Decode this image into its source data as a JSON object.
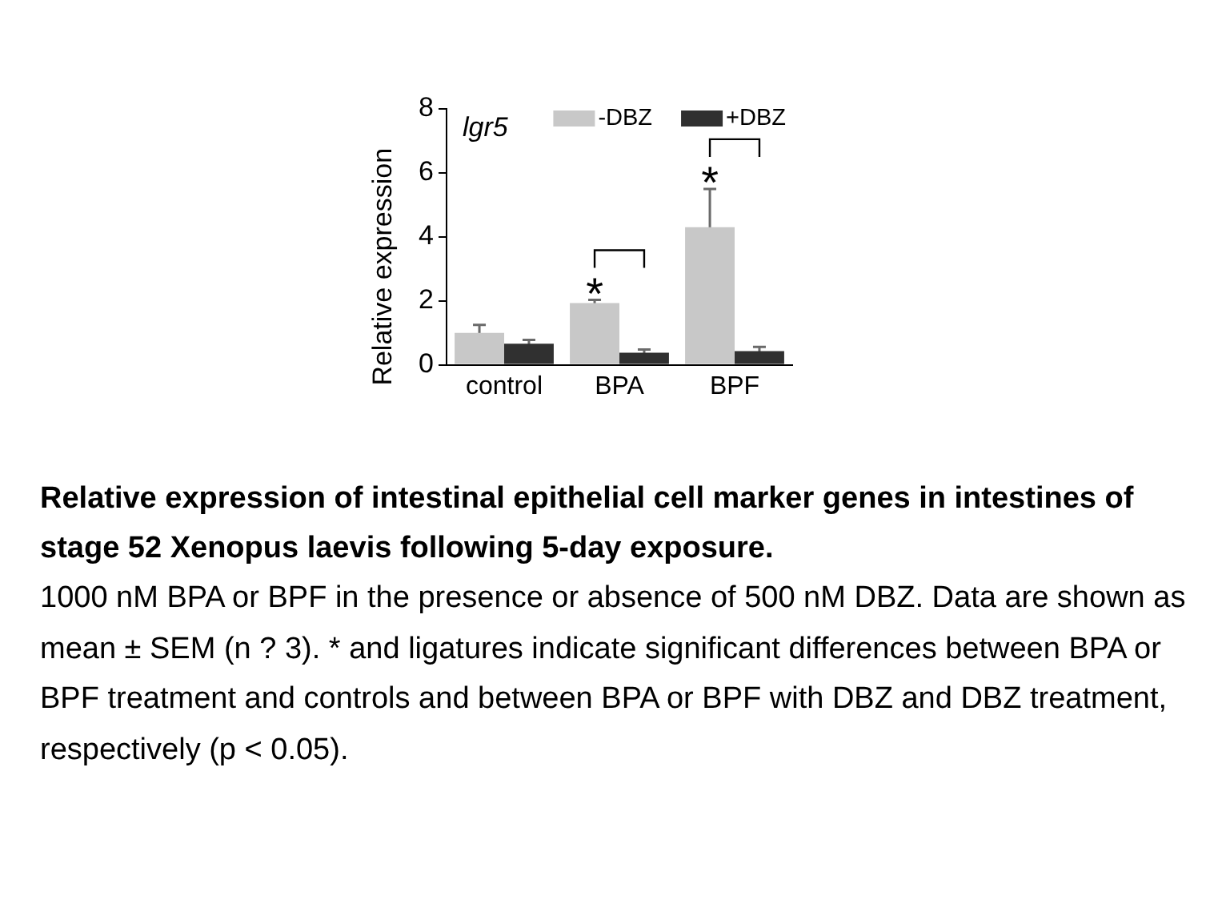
{
  "chart_data": {
    "type": "bar",
    "title": "lgr5",
    "subtitle": "Relative expression of intestinal epithelial cell marker genes in intestines of stage 52 Xenopus laevis following 5-day exposure.",
    "ylabel": "Relative expression",
    "categories": [
      "control",
      "BPA",
      "BPF"
    ],
    "series": [
      {
        "name": "-DBZ",
        "color": "#c8c8c8",
        "values": [
          1.0,
          1.93,
          4.3
        ],
        "errors": [
          0.25,
          0.1,
          1.2
        ]
      },
      {
        "name": "+DBZ",
        "color": "#303030",
        "values": [
          0.66,
          0.38,
          0.43
        ],
        "errors": [
          0.12,
          0.1,
          0.13
        ]
      }
    ],
    "ylim": [
      0,
      8
    ],
    "yticks": [
      0,
      2,
      4,
      6,
      8
    ],
    "grid": false,
    "legend": "top right",
    "annotations": [
      {
        "text": "*",
        "x": "BPA",
        "y": 1.93
      },
      {
        "text": "*",
        "x": "BPF",
        "y": 4.3
      },
      "1000 nM BPA or BPF in the presence or absence of 500 nM DBZ. Data are shown as mean ± SEM (n ? 3). * and ligatures indicate significant differences between BPA or BPF treatment and controls and between BPA or BPF with DBZ and DBZ treatment, respectively (p < 0.05)."
    ]
  }
}
